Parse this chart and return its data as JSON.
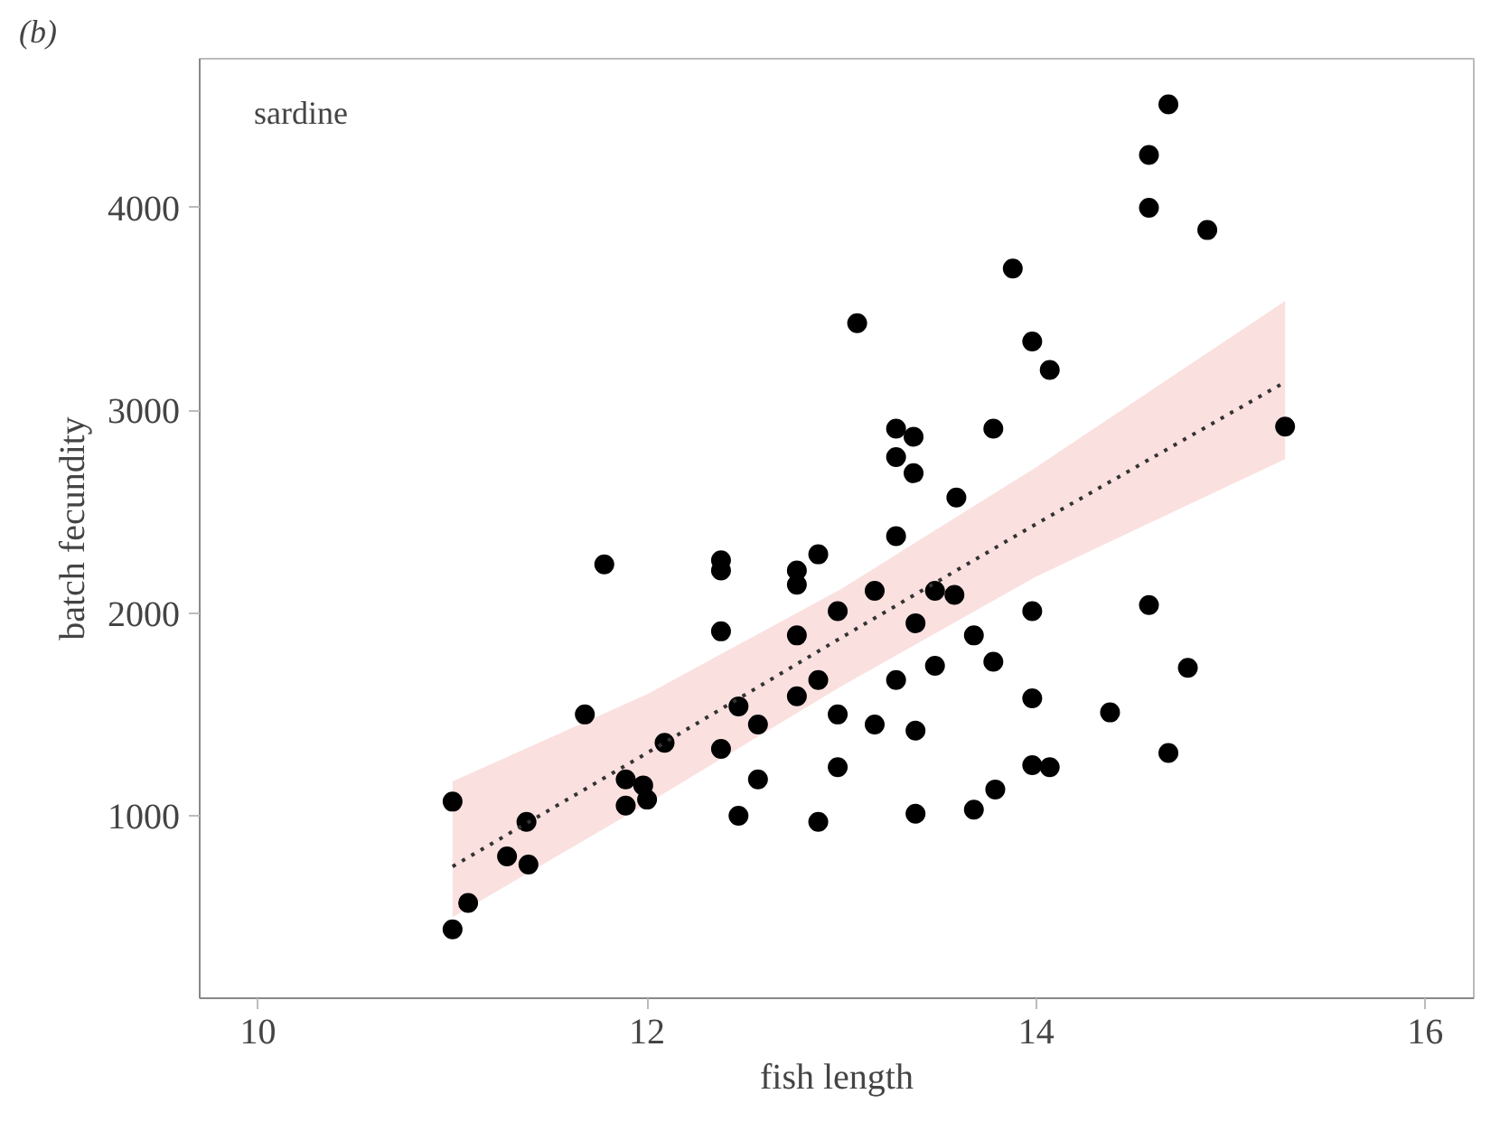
{
  "chart_data": {
    "type": "scatter",
    "title": "(b)",
    "xlabel": "fish length",
    "ylabel": "batch fecundity",
    "annotations": [
      "sardine"
    ],
    "xlim": [
      9.7,
      16.25
    ],
    "ylim": [
      100,
      4735
    ],
    "xticks": [
      10,
      12,
      14,
      16
    ],
    "yticks": [
      1000,
      2000,
      3000,
      4000
    ],
    "grid": false,
    "marker": "circle",
    "series": [
      {
        "color": "#000000",
        "x": [
          11.0,
          11.0,
          11.08,
          11.38,
          11.28,
          11.39,
          11.68,
          11.78,
          11.89,
          11.98,
          11.89,
          12.0,
          12.09,
          12.38,
          12.38,
          12.38,
          12.38,
          12.47,
          12.57,
          12.57,
          12.47,
          12.77,
          12.77,
          12.88,
          12.77,
          12.88,
          12.77,
          12.98,
          12.98,
          12.98,
          12.88,
          13.17,
          13.17,
          13.28,
          13.28,
          13.38,
          13.38,
          13.38,
          13.48,
          13.08,
          13.28,
          13.37,
          13.28,
          13.37,
          13.48,
          13.58,
          14.68,
          14.58,
          14.58,
          14.88,
          13.88,
          13.98,
          14.07,
          15.28,
          13.78,
          13.59,
          13.98,
          14.58,
          13.68,
          13.78,
          14.78,
          13.98,
          14.38,
          14.68,
          13.98,
          14.07,
          13.79,
          13.68
        ],
        "values": [
          1070,
          440,
          570,
          970,
          800,
          760,
          1500,
          2240,
          1180,
          1150,
          1050,
          1080,
          1360,
          2260,
          2210,
          1910,
          1330,
          1540,
          1450,
          1180,
          1000,
          2210,
          2140,
          2290,
          1890,
          1670,
          1590,
          2010,
          1500,
          1240,
          970,
          2110,
          1450,
          2380,
          1670,
          1950,
          1420,
          1010,
          1740,
          3430,
          2910,
          2870,
          2770,
          2690,
          2110,
          2090,
          4510,
          4260,
          4000,
          3890,
          3700,
          3340,
          3200,
          2920,
          2910,
          2570,
          2010,
          2040,
          1890,
          1760,
          1730,
          1580,
          1510,
          1310,
          1250,
          1240,
          1130,
          1030
        ]
      },
      {
        "type": "line",
        "color": "#333333",
        "line_style": "dotted",
        "marker": "none",
        "x": [
          11.0,
          12.0,
          13.0,
          14.0,
          15.28
        ],
        "values": [
          750,
          1310,
          1880,
          2440,
          3140
        ],
        "lower": [
          500,
          1060,
          1640,
          2180,
          2760
        ],
        "upper": [
          1170,
          1600,
          2120,
          2720,
          3540
        ]
      }
    ]
  }
}
